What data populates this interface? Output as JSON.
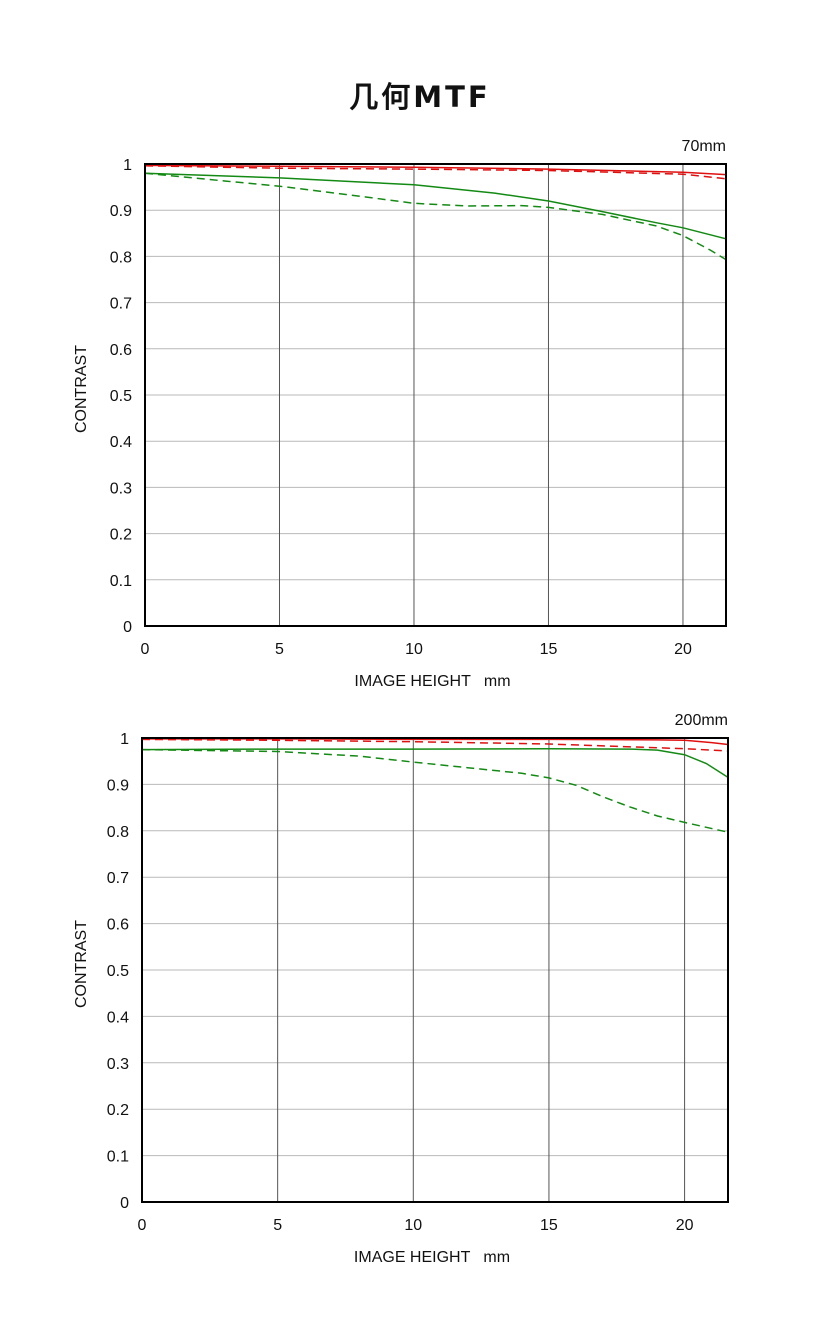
{
  "title": "几何MTF",
  "chart_data": [
    {
      "type": "line",
      "focal": "70mm",
      "xlabel": "IMAGE HEIGHT   mm",
      "ylabel": "CONTRAST",
      "xlim": [
        0,
        21.6
      ],
      "ylim": [
        0,
        1
      ],
      "xticks": [
        "0",
        "5",
        "10",
        "15",
        "20"
      ],
      "yticks": [
        "0",
        "0.1",
        "0.2",
        "0.3",
        "0.4",
        "0.5",
        "0.6",
        "0.7",
        "0.8",
        "0.9",
        "1"
      ],
      "grid": true,
      "series": [
        {
          "color": "#e01010",
          "dash": false,
          "points": [
            [
              0,
              0.997
            ],
            [
              5,
              0.995
            ],
            [
              10,
              0.993
            ],
            [
              15,
              0.989
            ],
            [
              20,
              0.982
            ],
            [
              21.6,
              0.977
            ]
          ]
        },
        {
          "color": "#e01010",
          "dash": true,
          "points": [
            [
              0,
              0.996
            ],
            [
              5,
              0.991
            ],
            [
              10,
              0.989
            ],
            [
              15,
              0.986
            ],
            [
              20,
              0.978
            ],
            [
              21.6,
              0.968
            ]
          ]
        },
        {
          "color": "#138a13",
          "dash": false,
          "points": [
            [
              0,
              0.98
            ],
            [
              5,
              0.97
            ],
            [
              10,
              0.955
            ],
            [
              13,
              0.937
            ],
            [
              15,
              0.92
            ],
            [
              17,
              0.897
            ],
            [
              19,
              0.873
            ],
            [
              20,
              0.862
            ],
            [
              21.6,
              0.838
            ]
          ]
        },
        {
          "color": "#138a13",
          "dash": true,
          "points": [
            [
              0,
              0.98
            ],
            [
              3,
              0.963
            ],
            [
              5,
              0.952
            ],
            [
              8,
              0.93
            ],
            [
              10,
              0.915
            ],
            [
              12,
              0.909
            ],
            [
              14,
              0.91
            ],
            [
              15,
              0.906
            ],
            [
              17,
              0.891
            ],
            [
              19,
              0.866
            ],
            [
              20,
              0.845
            ],
            [
              21,
              0.814
            ],
            [
              21.6,
              0.793
            ]
          ]
        }
      ]
    },
    {
      "type": "line",
      "focal": "200mm",
      "xlabel": "IMAGE HEIGHT   mm",
      "ylabel": "CONTRAST",
      "xlim": [
        0,
        21.6
      ],
      "ylim": [
        0,
        1
      ],
      "xticks": [
        "0",
        "5",
        "10",
        "15",
        "20"
      ],
      "yticks": [
        "0",
        "0.1",
        "0.2",
        "0.3",
        "0.4",
        "0.5",
        "0.6",
        "0.7",
        "0.8",
        "0.9",
        "1"
      ],
      "grid": true,
      "series": [
        {
          "color": "#e01010",
          "dash": false,
          "points": [
            [
              0,
              0.998
            ],
            [
              5,
              0.998
            ],
            [
              10,
              0.997
            ],
            [
              15,
              0.997
            ],
            [
              19,
              0.996
            ],
            [
              20,
              0.995
            ],
            [
              21,
              0.99
            ],
            [
              21.6,
              0.986
            ]
          ]
        },
        {
          "color": "#e01010",
          "dash": true,
          "points": [
            [
              0,
              0.997
            ],
            [
              5,
              0.995
            ],
            [
              10,
              0.992
            ],
            [
              15,
              0.987
            ],
            [
              17,
              0.983
            ],
            [
              20,
              0.977
            ],
            [
              21.6,
              0.972
            ]
          ]
        },
        {
          "color": "#138a13",
          "dash": false,
          "points": [
            [
              0,
              0.975
            ],
            [
              5,
              0.976
            ],
            [
              10,
              0.976
            ],
            [
              15,
              0.977
            ],
            [
              18,
              0.976
            ],
            [
              19,
              0.974
            ],
            [
              20,
              0.964
            ],
            [
              20.8,
              0.945
            ],
            [
              21.6,
              0.915
            ]
          ]
        },
        {
          "color": "#138a13",
          "dash": true,
          "points": [
            [
              0,
              0.975
            ],
            [
              5,
              0.971
            ],
            [
              8,
              0.961
            ],
            [
              10,
              0.948
            ],
            [
              12,
              0.936
            ],
            [
              14,
              0.924
            ],
            [
              15,
              0.914
            ],
            [
              16,
              0.898
            ],
            [
              17,
              0.873
            ],
            [
              18,
              0.851
            ],
            [
              19,
              0.832
            ],
            [
              20,
              0.818
            ],
            [
              21.6,
              0.797
            ]
          ]
        }
      ]
    }
  ]
}
